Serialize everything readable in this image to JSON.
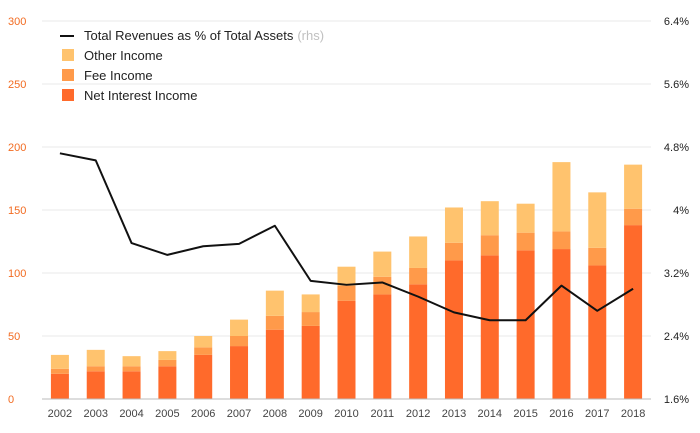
{
  "chart_data": {
    "type": "bar",
    "stacked": true,
    "categories": [
      "2002",
      "2003",
      "2004",
      "2005",
      "2006",
      "2007",
      "2008",
      "2009",
      "2010",
      "2011",
      "2012",
      "2013",
      "2014",
      "2015",
      "2016",
      "2017",
      "2018"
    ],
    "series": [
      {
        "name": "Net Interest Income",
        "color": "#ff6a2b",
        "values": [
          20,
          22,
          22,
          26,
          35,
          42,
          55,
          58,
          78,
          83,
          91,
          110,
          114,
          118,
          119,
          106,
          138
        ]
      },
      {
        "name": "Fee Income",
        "color": "#ff9a4a",
        "values": [
          4,
          4,
          4,
          5,
          6,
          8,
          11,
          11,
          12,
          14,
          13,
          14,
          16,
          14,
          14,
          14,
          13
        ]
      },
      {
        "name": "Other Income",
        "color": "#ffc36e",
        "values": [
          11,
          13,
          8,
          7,
          9,
          13,
          20,
          14,
          15,
          20,
          25,
          28,
          27,
          23,
          55,
          44,
          35
        ]
      }
    ],
    "line": {
      "name": "Total Revenues as % of Total Assets",
      "suffix": "(rhs)",
      "color": "#111111",
      "axis": "right",
      "values": [
        4.72,
        4.63,
        3.58,
        3.43,
        3.54,
        3.57,
        3.8,
        3.1,
        3.05,
        3.08,
        2.9,
        2.7,
        2.6,
        2.6,
        3.04,
        2.72,
        3.0
      ]
    },
    "y_left": {
      "ylim": [
        0,
        300
      ],
      "ticks": [
        0,
        50,
        100,
        150,
        200,
        250,
        300
      ],
      "tick_labels": [
        "0",
        "50",
        "100",
        "150",
        "200",
        "250",
        "300"
      ],
      "color": "#f26b21"
    },
    "y_right": {
      "ylim": [
        1.6,
        6.4
      ],
      "ticks": [
        1.6,
        2.4,
        3.2,
        4.0,
        4.8,
        5.6,
        6.4
      ],
      "tick_labels": [
        "1.6%",
        "2.4%",
        "3.2%",
        "4%",
        "4.8%",
        "5.6%",
        "6.4%"
      ]
    },
    "grid": true,
    "legend_position": "top-left",
    "title": "",
    "xlabel": "",
    "ylabel": ""
  }
}
